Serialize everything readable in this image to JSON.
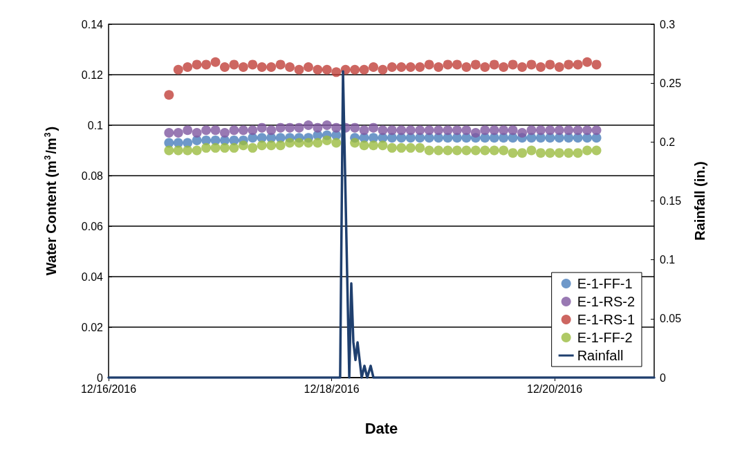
{
  "chart_data": {
    "type": "scatter",
    "xlabel": "Date",
    "ylabel": "Water Content (m$^{3}$/m$^{3}$)",
    "y2label": "Rainfall (in.)",
    "x": [
      "2016-12-16T13:00",
      "2016-12-16T15:00",
      "2016-12-16T17:00",
      "2016-12-16T19:00",
      "2016-12-16T21:00",
      "2016-12-16T23:00",
      "2016-12-17T01:00",
      "2016-12-17T03:00",
      "2016-12-17T05:00",
      "2016-12-17T07:00",
      "2016-12-17T09:00",
      "2016-12-17T11:00",
      "2016-12-17T13:00",
      "2016-12-17T15:00",
      "2016-12-17T17:00",
      "2016-12-17T19:00",
      "2016-12-17T21:00",
      "2016-12-17T23:00",
      "2016-12-18T01:00",
      "2016-12-18T03:00",
      "2016-12-18T05:00",
      "2016-12-18T07:00",
      "2016-12-18T09:00",
      "2016-12-18T11:00",
      "2016-12-18T13:00",
      "2016-12-18T15:00",
      "2016-12-18T17:00",
      "2016-12-18T19:00",
      "2016-12-18T21:00",
      "2016-12-18T23:00",
      "2016-12-19T01:00",
      "2016-12-19T03:00",
      "2016-12-19T05:00",
      "2016-12-19T07:00",
      "2016-12-19T09:00",
      "2016-12-19T11:00",
      "2016-12-19T13:00",
      "2016-12-19T15:00",
      "2016-12-19T17:00",
      "2016-12-19T19:00",
      "2016-12-19T21:00",
      "2016-12-19T23:00",
      "2016-12-20T01:00",
      "2016-12-20T03:00",
      "2016-12-20T05:00",
      "2016-12-20T07:00",
      "2016-12-20T09:00"
    ],
    "series": [
      {
        "name": "E-1-FF-1",
        "color": "#4a7ebb",
        "values": [
          0.093,
          0.093,
          0.093,
          0.094,
          0.094,
          0.094,
          0.094,
          0.094,
          0.094,
          0.095,
          0.095,
          0.095,
          0.095,
          0.095,
          0.095,
          0.095,
          0.096,
          0.096,
          0.096,
          null,
          0.095,
          0.095,
          0.095,
          0.095,
          0.095,
          0.095,
          0.095,
          0.095,
          0.095,
          0.095,
          0.095,
          0.095,
          0.095,
          0.095,
          0.095,
          0.095,
          0.095,
          0.095,
          0.095,
          0.095,
          0.095,
          0.095,
          0.095,
          0.095,
          0.095,
          0.095,
          0.095
        ]
      },
      {
        "name": "E-1-RS-2",
        "color": "#7f57a0",
        "values": [
          0.097,
          0.097,
          0.098,
          0.097,
          0.098,
          0.098,
          0.097,
          0.098,
          0.098,
          0.098,
          0.099,
          0.098,
          0.099,
          0.099,
          0.099,
          0.1,
          0.099,
          0.1,
          0.099,
          0.099,
          0.099,
          0.098,
          0.099,
          0.098,
          0.098,
          0.098,
          0.098,
          0.098,
          0.098,
          0.098,
          0.098,
          0.098,
          0.098,
          0.097,
          0.098,
          0.098,
          0.098,
          0.098,
          0.097,
          0.098,
          0.098,
          0.098,
          0.098,
          0.098,
          0.098,
          0.098,
          0.098
        ]
      },
      {
        "name": "E-1-RS-1",
        "color": "#c0403a",
        "values": [
          0.112,
          0.122,
          0.123,
          0.124,
          0.124,
          0.125,
          0.123,
          0.124,
          0.123,
          0.124,
          0.123,
          0.123,
          0.124,
          0.123,
          0.122,
          0.123,
          0.122,
          0.122,
          0.121,
          0.122,
          0.122,
          0.122,
          0.123,
          0.122,
          0.123,
          0.123,
          0.123,
          0.123,
          0.124,
          0.123,
          0.124,
          0.124,
          0.123,
          0.124,
          0.123,
          0.124,
          0.123,
          0.124,
          0.123,
          0.124,
          0.123,
          0.124,
          0.123,
          0.124,
          0.124,
          0.125,
          0.124
        ]
      },
      {
        "name": "E-1-FF-2",
        "color": "#9bbb40",
        "values": [
          0.09,
          0.09,
          0.09,
          0.09,
          0.091,
          0.091,
          0.091,
          0.091,
          0.092,
          0.091,
          0.092,
          0.092,
          0.092,
          0.093,
          0.093,
          0.093,
          0.093,
          0.094,
          0.093,
          null,
          0.093,
          0.092,
          0.092,
          0.092,
          0.091,
          0.091,
          0.091,
          0.091,
          0.09,
          0.09,
          0.09,
          0.09,
          0.09,
          0.09,
          0.09,
          0.09,
          0.09,
          0.089,
          0.089,
          0.09,
          0.089,
          0.089,
          0.089,
          0.089,
          0.089,
          0.09,
          0.09
        ]
      },
      {
        "name": "Rainfall",
        "type": "line",
        "marker": "none",
        "axis": "y2",
        "color": "#1f3f6e",
        "x": [
          "2016-12-16T00:00",
          "2016-12-18T01:50",
          "2016-12-18T02:27",
          "2016-12-18T03:48",
          "2016-12-18T04:14",
          "2016-12-18T04:41",
          "2016-12-18T05:08",
          "2016-12-18T05:35",
          "2016-12-18T06:28",
          "2016-12-18T07:04",
          "2016-12-18T07:40",
          "2016-12-18T08:24",
          "2016-12-18T09:00",
          "2016-12-20T21:25"
        ],
        "values": [
          0,
          0,
          0.26,
          0,
          0.08,
          0.03,
          0.015,
          0.03,
          0,
          0.01,
          0,
          0.01,
          0,
          0
        ]
      }
    ],
    "xlim": [
      "2016-12-16T00:00",
      "2016-12-20T21:25"
    ],
    "xticks": [
      {
        "value": "2016-12-16",
        "label": "12/16/2016"
      },
      {
        "value": "2016-12-18",
        "label": "12/18/2016"
      },
      {
        "value": "2016-12-20",
        "label": "12/20/2016"
      }
    ],
    "ylim": [
      0,
      0.14
    ],
    "yticks": [
      0,
      0.02,
      0.04,
      0.06,
      0.08,
      0.1,
      0.12,
      0.14
    ],
    "y2lim": [
      0,
      0.3
    ],
    "y2ticks": [
      0,
      0.05,
      0.1,
      0.15,
      0.2,
      0.25,
      0.3
    ],
    "grid": "y",
    "legend": "bottom right",
    "marker": "circle",
    "line_style": "solid"
  }
}
